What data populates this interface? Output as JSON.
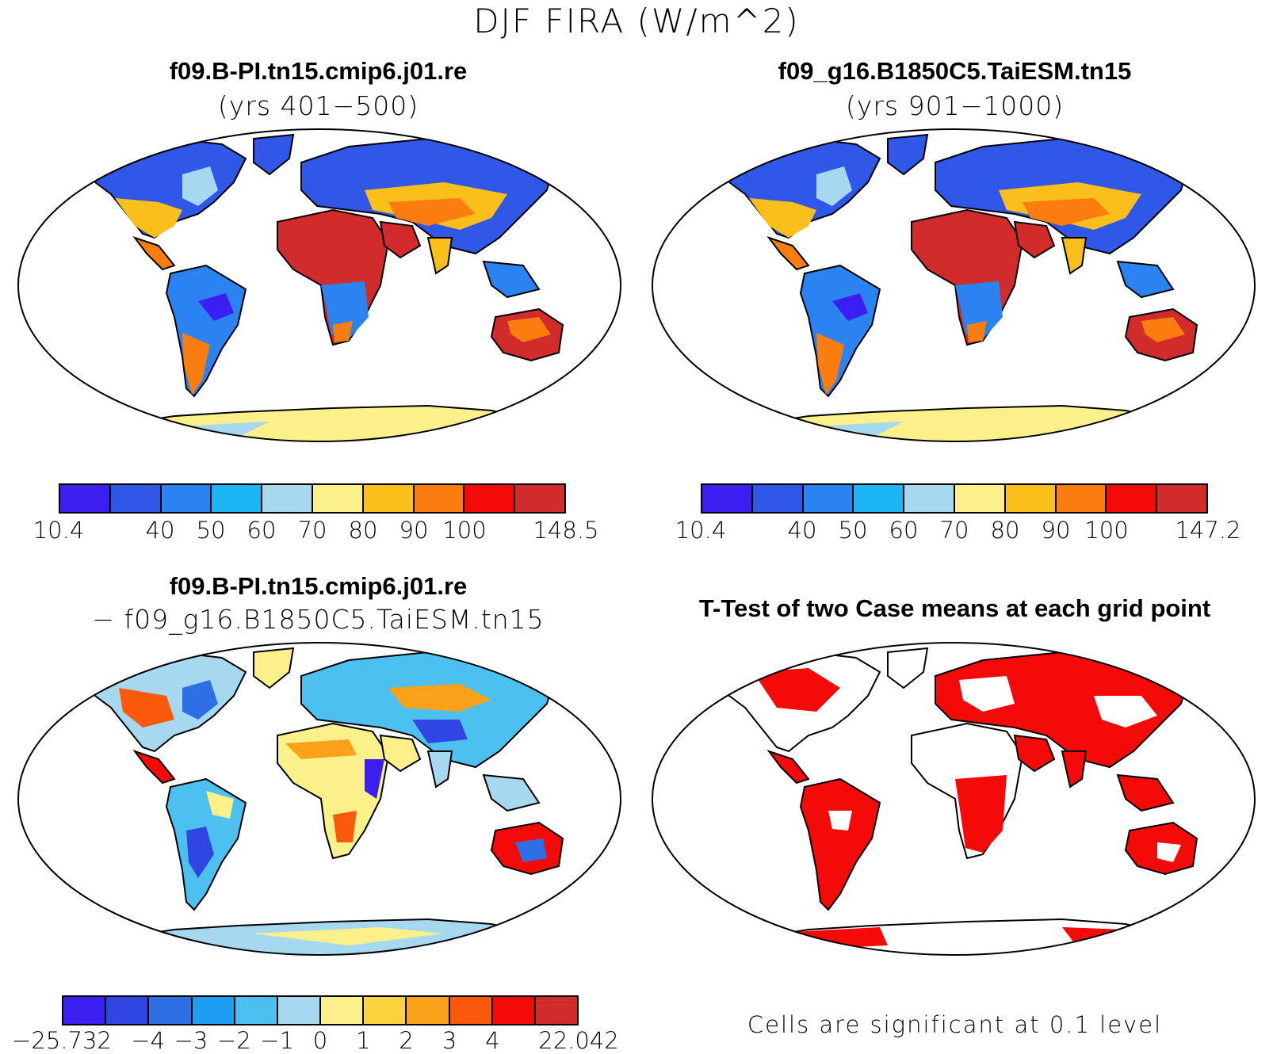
{
  "title": "DJF FIRA (W/m^2)",
  "panels": {
    "p1": {
      "title": "f09.B-PI.tn15.cmip6.j01.re",
      "subtitle": "(yrs 401−500)"
    },
    "p2": {
      "title": "f09_g16.B1850C5.TaiESM.tn15",
      "subtitle": "(yrs 901−1000)"
    },
    "p3": {
      "title": "f09.B-PI.tn15.cmip6.j01.re",
      "subtitle": "− f09_g16.B1850C5.TaiESM.tn15"
    },
    "p4": {
      "title": "T-Test of two Case means at each grid point",
      "note": "Cells are significant at 0.1 level"
    }
  },
  "colorbars": {
    "abs1": {
      "colors": [
        "#3b1ff0",
        "#2f57e8",
        "#2a83f0",
        "#1ab5f2",
        "#a6d8ef",
        "#fbf08a",
        "#fbbf1c",
        "#fb7d0f",
        "#f50a0a",
        "#d12b2b"
      ],
      "labels": [
        {
          "text": "10.4",
          "pos": 0
        },
        {
          "text": "40",
          "pos": 2
        },
        {
          "text": "50",
          "pos": 3
        },
        {
          "text": "60",
          "pos": 4
        },
        {
          "text": "70",
          "pos": 5
        },
        {
          "text": "80",
          "pos": 6
        },
        {
          "text": "90",
          "pos": 7
        },
        {
          "text": "100",
          "pos": 8
        },
        {
          "text": "148.5",
          "pos": 10
        }
      ]
    },
    "abs2": {
      "colors": [
        "#3b1ff0",
        "#2f57e8",
        "#2a83f0",
        "#1ab5f2",
        "#a6d8ef",
        "#fbf08a",
        "#fbbf1c",
        "#fb7d0f",
        "#f50a0a",
        "#d12b2b"
      ],
      "labels": [
        {
          "text": "10.4",
          "pos": 0
        },
        {
          "text": "40",
          "pos": 2
        },
        {
          "text": "50",
          "pos": 3
        },
        {
          "text": "60",
          "pos": 4
        },
        {
          "text": "70",
          "pos": 5
        },
        {
          "text": "80",
          "pos": 6
        },
        {
          "text": "90",
          "pos": 7
        },
        {
          "text": "100",
          "pos": 8
        },
        {
          "text": "147.2",
          "pos": 10
        }
      ]
    },
    "diff": {
      "colors": [
        "#3b1ff0",
        "#2f46e3",
        "#2e6fe6",
        "#1e9ef3",
        "#4cc0ef",
        "#a6d8ef",
        "#fbf08a",
        "#fbd33c",
        "#fba11a",
        "#fb5a0c",
        "#f50a0a",
        "#d12b2b"
      ],
      "labels": [
        {
          "text": "−25.732",
          "pos": 0
        },
        {
          "text": "−4",
          "pos": 2
        },
        {
          "text": "−3",
          "pos": 3
        },
        {
          "text": "−2",
          "pos": 4
        },
        {
          "text": "−1",
          "pos": 5
        },
        {
          "text": "0",
          "pos": 6
        },
        {
          "text": "1",
          "pos": 7
        },
        {
          "text": "2",
          "pos": 8
        },
        {
          "text": "3",
          "pos": 9
        },
        {
          "text": "4",
          "pos": 10
        },
        {
          "text": "22.042",
          "pos": 12
        }
      ]
    }
  },
  "map_colors": {
    "ocean": "#ffffff",
    "coast": "#000000",
    "sig": "#f50a0a"
  }
}
